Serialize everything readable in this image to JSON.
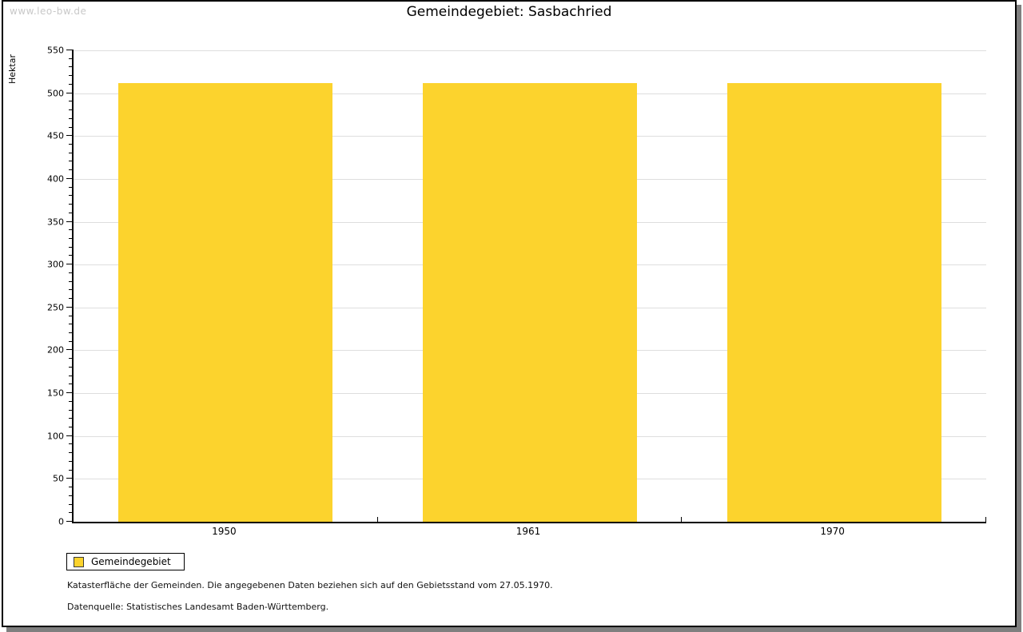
{
  "watermark": "www.leo-bw.de",
  "title": "Gemeindegebiet: Sasbachried",
  "legend": {
    "label": "Gemeindegebiet"
  },
  "captions": {
    "line1": "Katasterfläche der Gemeinden. Die angegebenen Daten beziehen sich auf den Gebietsstand vom 27.05.1970.",
    "line2": "Datenquelle: Statistisches Landesamt Baden-Württemberg."
  },
  "chart_data": {
    "type": "bar",
    "title": "Gemeindegebiet: Sasbachried",
    "categories": [
      "1950",
      "1961",
      "1970"
    ],
    "series": [
      {
        "name": "Gemeindegebiet",
        "values": [
          512,
          512,
          512
        ]
      }
    ],
    "xlabel": "",
    "ylabel": "Hektar",
    "ylim": [
      0,
      550
    ],
    "ytick_major": 50,
    "ytick_minor": 10,
    "grid": true,
    "legend_position": "bottom-left"
  },
  "colors": {
    "bar": "#FCD32D",
    "grid": "#DEDEDE",
    "axis": "#000000",
    "watermark": "#C8C8C8",
    "shadow": "#7F7F7F"
  }
}
